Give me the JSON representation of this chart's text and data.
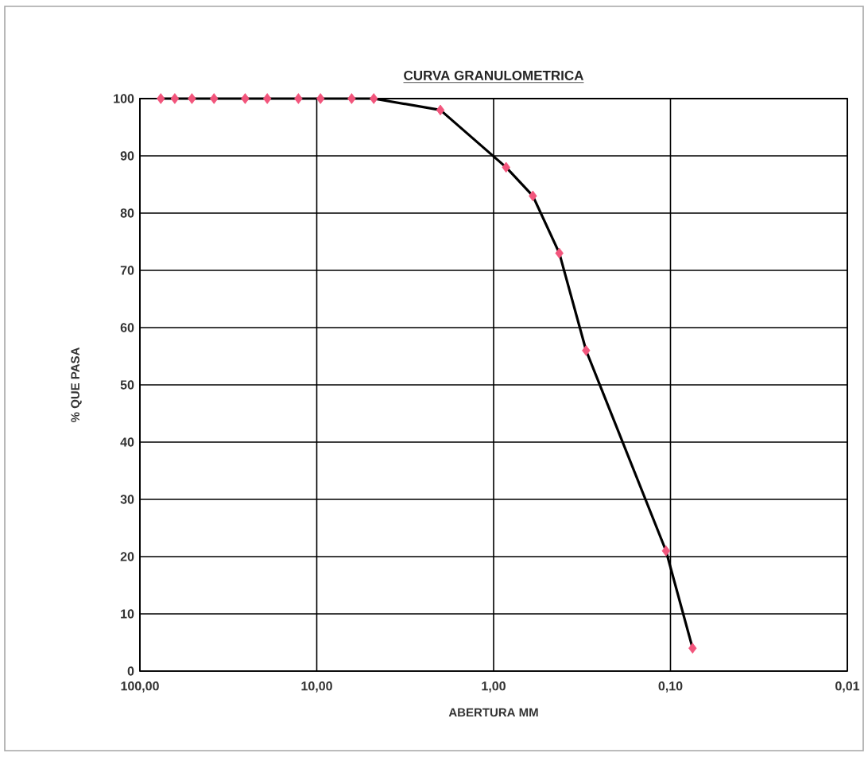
{
  "chart_data": {
    "type": "line",
    "title": "CURVA GRANULOMETRICA",
    "xlabel": "ABERTURA MM",
    "ylabel": "% QUE PASA",
    "x": [
      76.2,
      63.5,
      50.8,
      38.1,
      25.4,
      19.05,
      12.7,
      9.525,
      6.35,
      4.76,
      2.0,
      0.85,
      0.6,
      0.425,
      0.3,
      0.106,
      0.075
    ],
    "series": [
      {
        "color": "#000000",
        "values": [
          100,
          100,
          100,
          100,
          100,
          100,
          100,
          100,
          100,
          100,
          98,
          88,
          83,
          73,
          56,
          21,
          4
        ],
        "colors": [
          "#f2557c",
          "#f2557c",
          "#f2557c",
          "#f2557c",
          "#f2557c",
          "#f2557c",
          "#f2557c",
          "#f2557c",
          "#f2557c",
          "#f2557c",
          "#f2557c",
          "#f2557c",
          "#f2557c",
          "#f2557c",
          "#f2557c",
          "#f2557c",
          "#f2557c"
        ]
      }
    ],
    "marker": "diamond",
    "log": "x",
    "xlim": [
      100,
      0.01
    ],
    "xticks": [
      {
        "value": 100,
        "label": "100,00"
      },
      {
        "value": 10,
        "label": "10,00"
      },
      {
        "value": 1,
        "label": "1,00"
      },
      {
        "value": 0.1,
        "label": "0,10"
      },
      {
        "value": 0.01,
        "label": "0,01"
      }
    ],
    "ylim": [
      0,
      100
    ],
    "yticks": [
      0,
      10,
      20,
      30,
      40,
      50,
      60,
      70,
      80,
      90,
      100
    ],
    "grid": true
  }
}
